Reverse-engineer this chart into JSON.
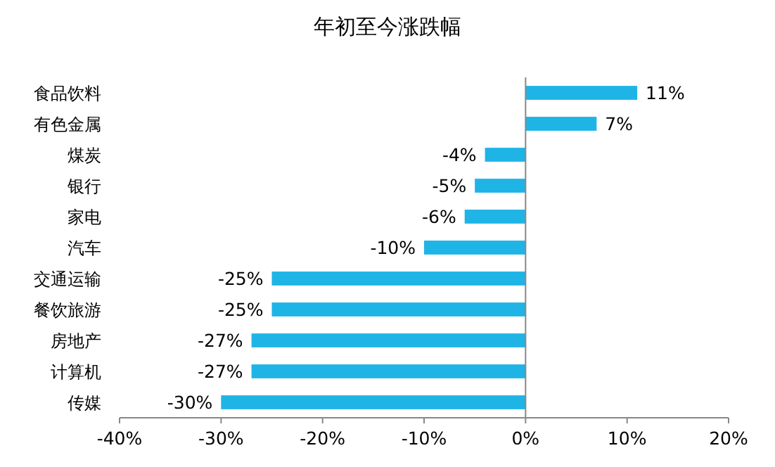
{
  "chart_data": {
    "type": "bar",
    "orientation": "horizontal",
    "title": "年初至今涨跌幅",
    "categories": [
      "食品饮料",
      "有色金属",
      "煤炭",
      "银行",
      "家电",
      "汽车",
      "交通运输",
      "餐饮旅游",
      "房地产",
      "计算机",
      "传媒"
    ],
    "values": [
      11,
      7,
      -4,
      -5,
      -6,
      -10,
      -25,
      -25,
      -27,
      -27,
      -30
    ],
    "value_labels": [
      "11%",
      "7%",
      "-4%",
      "-5%",
      "-6%",
      "-10%",
      "-25%",
      "-25%",
      "-27%",
      "-27%",
      "-30%"
    ],
    "color": "#1fb4e6",
    "xlim": [
      -40,
      20
    ],
    "xticks": [
      {
        "value": -40,
        "label": "-40%"
      },
      {
        "value": -30,
        "label": "-30%"
      },
      {
        "value": -20,
        "label": "-20%"
      },
      {
        "value": -10,
        "label": "-10%"
      },
      {
        "value": 0,
        "label": "0%"
      },
      {
        "value": 10,
        "label": "10%"
      },
      {
        "value": 20,
        "label": "20%"
      }
    ]
  }
}
